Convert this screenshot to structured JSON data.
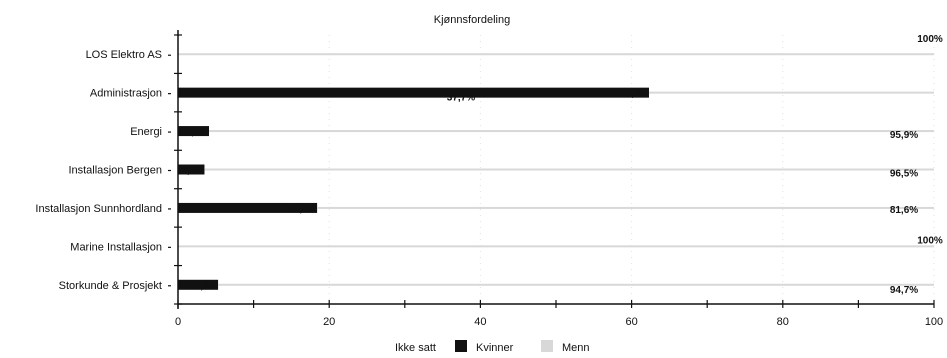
{
  "chart_data": {
    "type": "bar",
    "orientation": "horizontal",
    "title": "Kjønnsfordeling",
    "xlabel": "",
    "ylabel": "",
    "xlim": [
      0,
      100
    ],
    "x_ticks": [
      "0",
      "20",
      "40",
      "60",
      "80",
      "100"
    ],
    "categories": [
      "LOS Elektro AS",
      "Administrasjon",
      "Energi",
      "Installasjon Bergen",
      "Installasjon Sunnhordland",
      "Marine Installasjon",
      "Storkunde & Prosjekt"
    ],
    "series": [
      {
        "name": "Ikke satt",
        "values": [
          0,
          0,
          0,
          0,
          0,
          0,
          0
        ]
      },
      {
        "name": "Kvinner",
        "values": [
          0,
          62.3,
          4.1,
          3.5,
          18.4,
          0,
          5.3
        ]
      },
      {
        "name": "Menn",
        "values": [
          100,
          37.7,
          95.9,
          96.5,
          81.6,
          100,
          94.7
        ]
      }
    ],
    "data_labels": {
      "kvinner": [
        "",
        "62,3%",
        "4,1%",
        "3,5%",
        "18,4%",
        "",
        "5,3%"
      ],
      "menn": [
        "100%",
        "37,7%",
        "95,9%",
        "96,5%",
        "81,6%",
        "100%",
        "94,7%"
      ]
    },
    "legend": {
      "position": "bottom",
      "items": [
        "Ikke satt",
        "Kvinner",
        "Menn"
      ]
    },
    "colors": {
      "ikke_satt": "#ffffff",
      "kvinner": "#111111",
      "menn": "#d8d8d8",
      "axis": "#111111",
      "background": "#ffffff"
    },
    "grid": false
  }
}
